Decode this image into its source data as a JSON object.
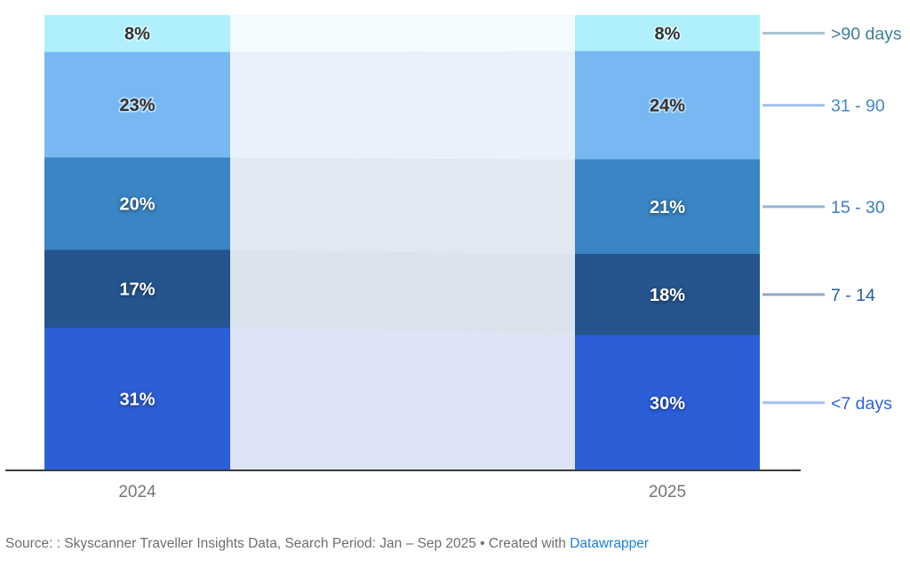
{
  "chart_data": {
    "type": "bar",
    "variant": "stacked-column-100-slope",
    "title": "",
    "xlabel": "",
    "ylabel": "",
    "ylim": [
      0,
      100
    ],
    "grid": false,
    "legend_position": "right",
    "categories": [
      "2024",
      "2025"
    ],
    "series": [
      {
        "name": ">90 days",
        "slug": "gt-90-days",
        "values": [
          8,
          8
        ],
        "display": [
          "8%",
          "8%"
        ],
        "color": "#aff0fc",
        "band_color": "#f2fbfe",
        "value_label_style": "dark",
        "legend_text_color": "#3e7e99",
        "legend_line_color": "#a4c3cd"
      },
      {
        "name": "31 - 90",
        "slug": "31-90",
        "values": [
          23,
          24
        ],
        "display": [
          "23%",
          "24%"
        ],
        "color": "#77b8f3",
        "band_color": "#e9f2fb",
        "value_label_style": "dark",
        "legend_text_color": "#4387cd",
        "legend_line_color": "#a2c3e9"
      },
      {
        "name": "15 - 30",
        "slug": "15-30",
        "values": [
          20,
          21
        ],
        "display": [
          "20%",
          "21%"
        ],
        "color": "#3a85c4",
        "band_color": "#e0e9f2",
        "value_label_style": "light",
        "legend_text_color": "#3a7ac0",
        "legend_line_color": "#97b6dc"
      },
      {
        "name": "7 - 14",
        "slug": "7-14",
        "values": [
          17,
          18
        ],
        "display": [
          "17%",
          "18%"
        ],
        "color": "#25548e",
        "band_color": "#dbe3ec",
        "value_label_style": "light",
        "legend_text_color": "#2a5c9e",
        "legend_line_color": "#92a9c7"
      },
      {
        "name": "<7 days",
        "slug": "lt-7-days",
        "values": [
          31,
          30
        ],
        "display": [
          "31%",
          "30%"
        ],
        "color": "#2c5ed8",
        "band_color": "#dde4f7",
        "value_label_style": "light",
        "legend_text_color": "#2f62de",
        "legend_line_color": "#a6bef2"
      }
    ],
    "axis_color": "#3a3a3a",
    "category_label_color": "#757575"
  },
  "footer": {
    "source_text": "Source: : Skyscanner Traveller Insights Data, Search Period: Jan – Sep 2025 • Created with ",
    "link_text": "Datawrapper",
    "text_color": "#6e6e6e",
    "link_color": "#1e7fde"
  }
}
